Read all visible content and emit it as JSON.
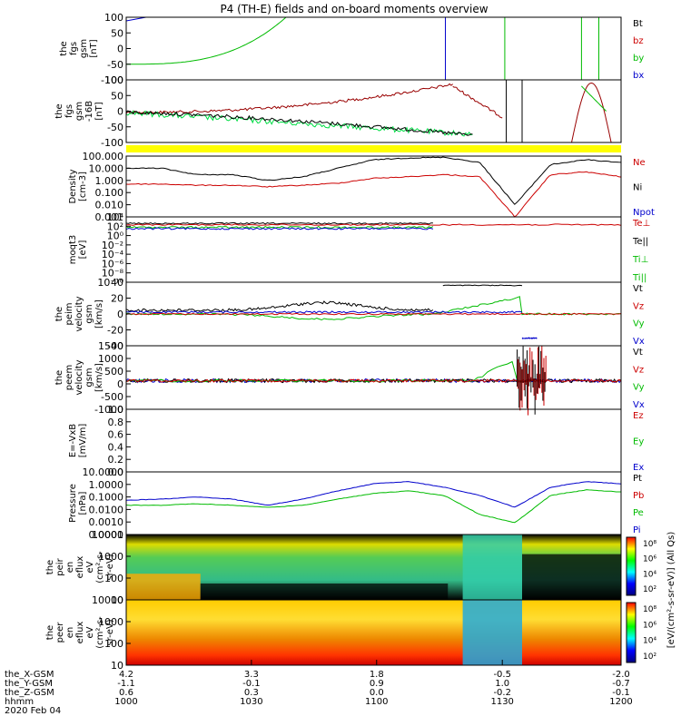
{
  "chart_data": {
    "type": "line",
    "title": "P4 (TH-E) fields and on-board moments overview",
    "x_axis": {
      "rows": [
        {
          "label": "the_X-GSM",
          "values": [
            "4.2",
            "3.3",
            "1.8",
            "-0.5",
            "-2.0"
          ]
        },
        {
          "label": "the_Y-GSM",
          "values": [
            "-1.1",
            "-0.1",
            "0.9",
            "1.0",
            "-0.7"
          ]
        },
        {
          "label": "the_Z-GSM",
          "values": [
            "0.6",
            "0.3",
            "0.0",
            "-0.2",
            "-0.1"
          ]
        },
        {
          "label": "hhmm",
          "values": [
            "1000",
            "1030",
            "1100",
            "1130",
            "1200"
          ]
        }
      ],
      "date": "2020 Feb 04"
    },
    "panels": [
      {
        "id": "fgs",
        "ylabel": [
          "the",
          "fgs",
          "gsm",
          "[nT]"
        ],
        "ylim": [
          -100,
          100
        ],
        "ticks": [
          "100",
          "50",
          "0",
          "-50",
          "-100"
        ],
        "legend": [
          {
            "name": "Bt",
            "color": "#000000"
          },
          {
            "name": "bz",
            "color": "#cc0000"
          },
          {
            "name": "by",
            "color": "#00bb00"
          },
          {
            "name": "bx",
            "color": "#0000cc"
          }
        ]
      },
      {
        "id": "fgs2",
        "ylabel": [
          "the",
          "fgs",
          "gsm",
          "-16B",
          "[nT]"
        ],
        "ylim": [
          -125,
          100
        ],
        "ticks": [
          "100",
          "50",
          "0",
          "-50",
          "-100"
        ],
        "legend": []
      },
      {
        "id": "density",
        "ylabel": [
          "Density",
          "[cm-3]"
        ],
        "log": true,
        "ticks": [
          "100.000",
          "10.000",
          "1.000",
          "0.100",
          "0.010",
          "0.001"
        ],
        "legend": [
          {
            "name": "Ne",
            "color": "#cc0000"
          },
          {
            "name": "Ni",
            "color": "#000000"
          },
          {
            "name": "Npot",
            "color": "#0000cc"
          }
        ]
      },
      {
        "id": "temp",
        "ylabel": [
          "moqt3",
          "[eV]"
        ],
        "log": true,
        "ticks": [
          "10⁴",
          "10²",
          "10⁰",
          "10⁻²",
          "10⁻⁴",
          "10⁻⁶",
          "10⁻⁸",
          "10⁻¹⁰"
        ],
        "legend": [
          {
            "name": "Te⊥",
            "color": "#cc0000"
          },
          {
            "name": "Te||",
            "color": "#000000"
          },
          {
            "name": "Ti⊥",
            "color": "#00bb00"
          },
          {
            "name": "Ti||",
            "color": "#00bb00"
          }
        ]
      },
      {
        "id": "peim",
        "ylabel": [
          "the",
          "peim",
          "velocity",
          "gsm",
          "[km/s]"
        ],
        "ylim": [
          -40,
          40
        ],
        "ticks": [
          "40",
          "20",
          "0",
          "-20",
          "-40"
        ],
        "legend": [
          {
            "name": "Vt",
            "color": "#000000"
          },
          {
            "name": "Vz",
            "color": "#cc0000"
          },
          {
            "name": "Vy",
            "color": "#00bb00"
          },
          {
            "name": "Vx",
            "color": "#0000cc"
          }
        ]
      },
      {
        "id": "peem",
        "ylabel": [
          "the",
          "peem",
          "velocity",
          "gsm",
          "[km/s]"
        ],
        "ylim": [
          -1500,
          1500
        ],
        "ticks": [
          "1500",
          "1000",
          "500",
          "0",
          "-500",
          "-1000"
        ],
        "legend": [
          {
            "name": "Vt",
            "color": "#000000"
          },
          {
            "name": "Vz",
            "color": "#cc0000"
          },
          {
            "name": "Vy",
            "color": "#00bb00"
          },
          {
            "name": "Vx",
            "color": "#0000cc"
          }
        ]
      },
      {
        "id": "efield",
        "ylabel": [
          "E=-VxB",
          "[mV/m]"
        ],
        "ylim": [
          0,
          1
        ],
        "ticks": [
          "1.0",
          "0.8",
          "0.6",
          "0.4",
          "0.2",
          "0.0"
        ],
        "legend": [
          {
            "name": "Ez",
            "color": "#cc0000"
          },
          {
            "name": "Ey",
            "color": "#00bb00"
          },
          {
            "name": "Ex",
            "color": "#0000cc"
          }
        ]
      },
      {
        "id": "pressure",
        "ylabel": [
          "Pressure",
          "[nPa]"
        ],
        "log": true,
        "ticks": [
          "10.0000",
          "1.0000",
          "0.1000",
          "0.0100",
          "0.0010",
          "0.0001"
        ],
        "legend": [
          {
            "name": "Pt",
            "color": "#000000"
          },
          {
            "name": "Pb",
            "color": "#cc0000"
          },
          {
            "name": "Pe",
            "color": "#00bb00"
          },
          {
            "name": "Pi",
            "color": "#0000cc"
          }
        ]
      },
      {
        "id": "peir",
        "ylabel": [
          "the",
          "peir",
          "en",
          "eflux",
          "eV",
          "(cm²-s-",
          "sr-eV)"
        ],
        "log": true,
        "ticks": [
          "10000",
          "1000",
          "100",
          "10"
        ],
        "legend": []
      },
      {
        "id": "peer",
        "ylabel": [
          "the",
          "peer",
          "en",
          "eflux",
          "eV",
          "(cm²-s-",
          "sr-eV)"
        ],
        "log": true,
        "ticks": [
          "10000",
          "1000",
          "100",
          "10"
        ],
        "legend": []
      }
    ],
    "colorbar": {
      "label": "[eV/(cm²-s-sr-eV)] (All Qs)",
      "ticks_top": [
        "10⁸",
        "10⁶",
        "10⁴",
        "10²"
      ],
      "ticks_bottom": [
        "10⁸",
        "10⁶",
        "10⁴",
        "10²"
      ]
    },
    "series_summary": {
      "density_Ni_approx": [
        10,
        10,
        3,
        3,
        1,
        2,
        10,
        50,
        70,
        80,
        30,
        0.01,
        20,
        50,
        30
      ],
      "density_Ne_approx": [
        0.5,
        0.5,
        0.4,
        0.4,
        0.3,
        0.4,
        0.6,
        1.5,
        2,
        3,
        2,
        0.001,
        3,
        5,
        2
      ],
      "pressure_Pi_approx": [
        0.08,
        0.1,
        0.15,
        0.1,
        0.03,
        0.1,
        0.5,
        2,
        3,
        1,
        0.2,
        0.02,
        1,
        3,
        2
      ],
      "pressure_Pe_approx": [
        0.03,
        0.03,
        0.04,
        0.03,
        0.02,
        0.03,
        0.1,
        0.3,
        0.5,
        0.2,
        0.005,
        0.001,
        0.2,
        0.6,
        0.4
      ]
    }
  }
}
